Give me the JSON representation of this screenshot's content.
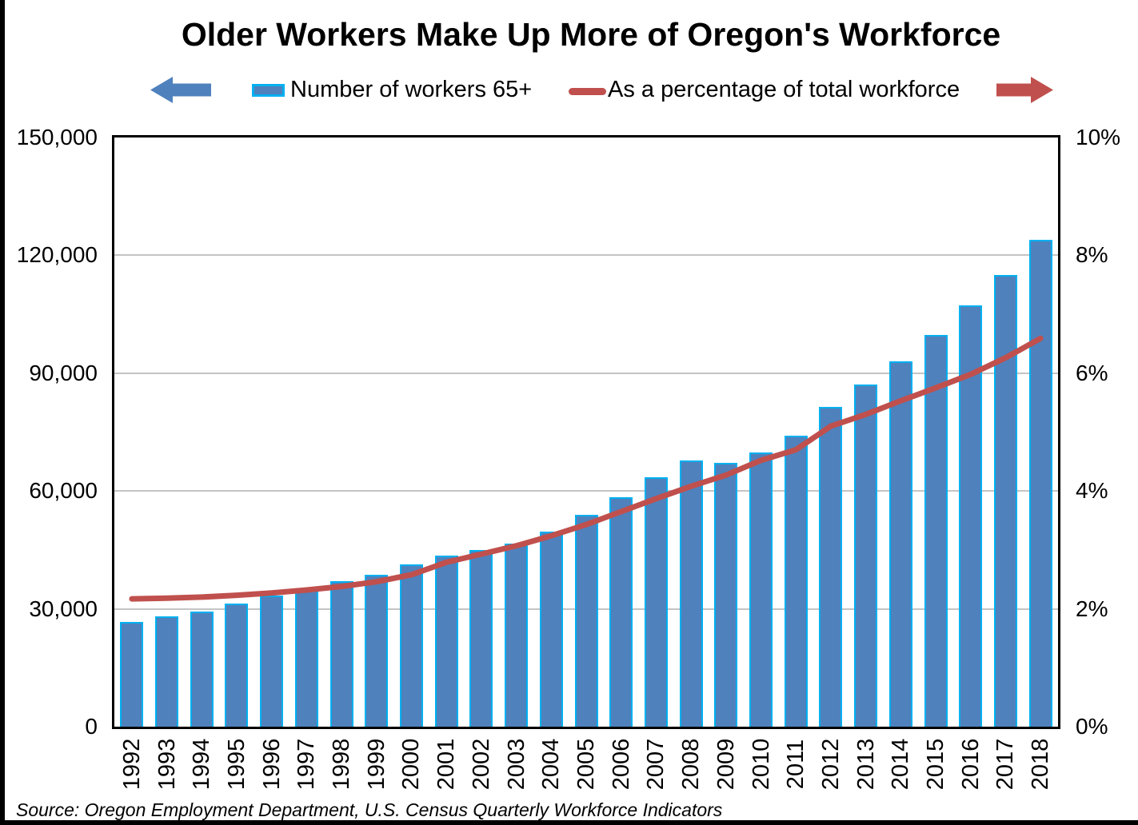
{
  "title": "Older Workers Make Up More of Oregon's Workforce",
  "legend": {
    "bar_label": "Number of workers 65+",
    "line_label": "As a percentage of total workforce"
  },
  "source_note": "Source: Oregon Employment Department, U.S. Census Quarterly Workforce Indicators",
  "colors": {
    "bar_fill": "#4F81BD",
    "bar_border": "#00B0F0",
    "line": "#C0504D",
    "gridline": "#C4C4C4",
    "axis": "#000000",
    "background": "#FFFFFF"
  },
  "chart_data": {
    "type": "combo-bar-line",
    "title": "Older Workers Make Up More of Oregon's Workforce",
    "categories": [
      "1992",
      "1993",
      "1994",
      "1995",
      "1996",
      "1997",
      "1998",
      "1999",
      "2000",
      "2001",
      "2002",
      "2003",
      "2004",
      "2005",
      "2006",
      "2007",
      "2008",
      "2009",
      "2010",
      "2011",
      "2012",
      "2013",
      "2014",
      "2015",
      "2016",
      "2017",
      "2018"
    ],
    "series": [
      {
        "name": "Number of workers 65+",
        "type": "bar",
        "axis": "left",
        "color": "#4F81BD",
        "border_color": "#00B0F0",
        "values": [
          26700,
          28000,
          29400,
          31300,
          33300,
          35300,
          37000,
          38700,
          41300,
          43500,
          45000,
          46700,
          49700,
          53900,
          58500,
          63500,
          67800,
          67200,
          69800,
          74000,
          81500,
          87200,
          93000,
          99800,
          107300,
          115000,
          123900
        ]
      },
      {
        "name": "As a percentage of total workforce",
        "type": "line",
        "axis": "right",
        "color": "#C0504D",
        "values": [
          2.17,
          2.18,
          2.2,
          2.23,
          2.27,
          2.32,
          2.38,
          2.46,
          2.58,
          2.79,
          2.93,
          3.07,
          3.24,
          3.43,
          3.65,
          3.87,
          4.08,
          4.27,
          4.52,
          4.7,
          5.1,
          5.3,
          5.53,
          5.75,
          5.98,
          6.26,
          6.59
        ]
      }
    ],
    "left_axis": {
      "min": 0,
      "max": 150000,
      "tick_values": [
        150000,
        120000,
        90000,
        60000,
        30000,
        0
      ],
      "tick_labels": [
        "150,000",
        "120,000",
        "90,000",
        "60,000",
        "30,000",
        "0"
      ]
    },
    "right_axis": {
      "min": 0,
      "max": 10,
      "tick_values": [
        10,
        8,
        6,
        4,
        2,
        0
      ],
      "tick_labels": [
        "10%",
        "8%",
        "6%",
        "4%",
        "2%",
        "0%"
      ]
    },
    "gridline_values": [
      120000,
      90000,
      60000,
      30000
    ],
    "legend_position": "top",
    "grid": true
  }
}
